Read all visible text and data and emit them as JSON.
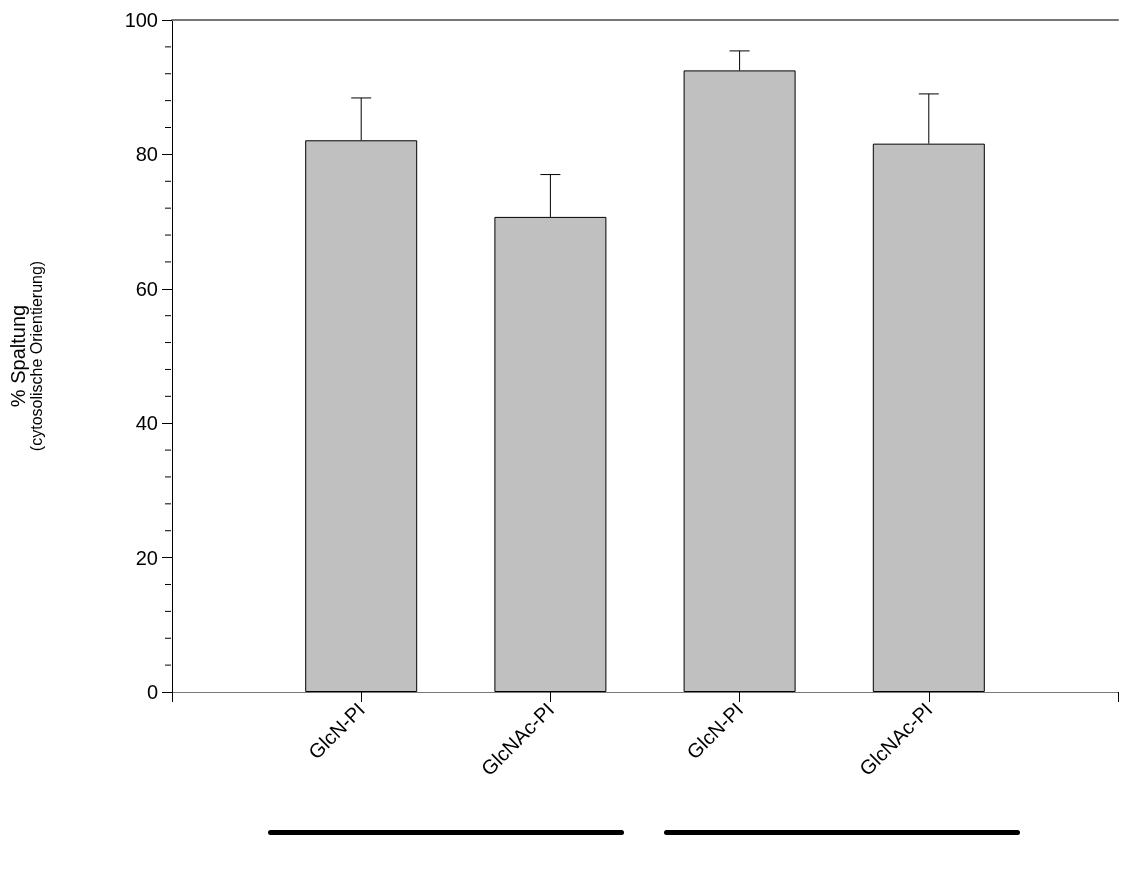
{
  "chart_data": {
    "type": "bar",
    "ylabel": "% Spaltung\n(cytosolische Orientierung)",
    "categories": [
      null,
      "GlcN-PI",
      "GlcNAc-PI",
      "GlcN-PI",
      "GlcNAc-PI",
      null
    ],
    "series": [
      {
        "color": "#c0c0c0",
        "values": [
          null,
          82.1,
          70.7,
          92.5,
          81.6,
          null
        ],
        "errors": [
          null,
          6.3,
          6.3,
          2.9,
          7.4,
          null
        ]
      }
    ],
    "ylim": [
      0,
      100
    ],
    "yticks": [
      0,
      20,
      40,
      60,
      80,
      100
    ]
  }
}
